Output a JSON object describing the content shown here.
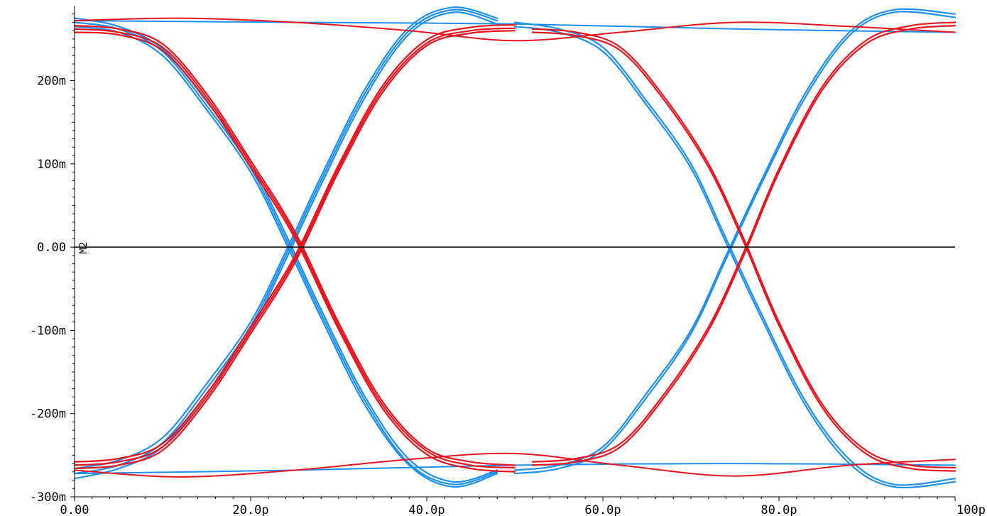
{
  "chart_data": {
    "type": "line",
    "title": "",
    "xlabel": "",
    "ylabel": "",
    "x_range": [
      0,
      100
    ],
    "y_range": [
      -300,
      290
    ],
    "x_ticks": [
      0,
      20,
      40,
      60,
      80,
      100
    ],
    "x_tick_labels": [
      "0.00",
      "20.0p",
      "40.0p",
      "60.0p",
      "80.0p",
      "100p"
    ],
    "y_ticks": [
      200,
      100,
      0,
      -100,
      -200,
      -300
    ],
    "y_tick_labels": [
      "200m",
      "100m",
      "0.00",
      "-100m",
      "-200m",
      "-300m"
    ],
    "grid": false,
    "legend": "none",
    "reference_line": {
      "y": 0,
      "color": "#000000",
      "label": "M2"
    },
    "colors": {
      "blue": "#1f8ff0",
      "red": "#e8141e"
    },
    "series": [
      {
        "color": "#1f8ff0",
        "kind": "falling",
        "x": [
          0,
          5,
          10,
          15,
          20,
          24,
          28,
          33,
          38,
          43,
          48
        ],
        "y": [
          270,
          262,
          235,
          170,
          95,
          10,
          -80,
          -185,
          -260,
          -285,
          -270
        ]
      },
      {
        "color": "#1f8ff0",
        "kind": "falling",
        "x": [
          0,
          5,
          10,
          15,
          20,
          24,
          28,
          33,
          38,
          43,
          48
        ],
        "y": [
          275,
          265,
          238,
          175,
          100,
          15,
          -75,
          -180,
          -255,
          -282,
          -268
        ]
      },
      {
        "color": "#1f8ff0",
        "kind": "falling",
        "x": [
          0,
          5,
          10,
          15,
          20,
          24,
          28,
          33,
          38,
          43,
          48
        ],
        "y": [
          265,
          258,
          230,
          165,
          90,
          5,
          -85,
          -190,
          -262,
          -288,
          -272
        ]
      },
      {
        "color": "#1f8ff0",
        "kind": "rising",
        "x": [
          0,
          5,
          10,
          15,
          20,
          24,
          28,
          33,
          38,
          43,
          48
        ],
        "y": [
          -272,
          -262,
          -235,
          -170,
          -95,
          -10,
          80,
          185,
          260,
          285,
          272
        ]
      },
      {
        "color": "#1f8ff0",
        "kind": "rising",
        "x": [
          0,
          5,
          10,
          15,
          20,
          24,
          28,
          33,
          38,
          43,
          48
        ],
        "y": [
          -278,
          -266,
          -240,
          -176,
          -100,
          -15,
          75,
          180,
          256,
          282,
          268
        ]
      },
      {
        "color": "#1f8ff0",
        "kind": "rising",
        "x": [
          0,
          5,
          10,
          15,
          20,
          24,
          28,
          33,
          38,
          43,
          48
        ],
        "y": [
          -266,
          -256,
          -229,
          -164,
          -90,
          -5,
          85,
          190,
          264,
          288,
          275
        ]
      },
      {
        "color": "#1f8ff0",
        "kind": "falling",
        "x": [
          50,
          55,
          60,
          65,
          70,
          74,
          78,
          83,
          88,
          93,
          100
        ],
        "y": [
          270,
          262,
          240,
          175,
          100,
          10,
          -80,
          -185,
          -255,
          -285,
          -278
        ]
      },
      {
        "color": "#1f8ff0",
        "kind": "falling",
        "x": [
          50,
          55,
          60,
          65,
          70,
          74,
          78,
          83,
          88,
          93,
          100
        ],
        "y": [
          265,
          258,
          235,
          170,
          95,
          5,
          -85,
          -190,
          -260,
          -288,
          -282
        ]
      },
      {
        "color": "#1f8ff0",
        "kind": "rising",
        "x": [
          50,
          55,
          60,
          65,
          70,
          74,
          78,
          83,
          88,
          93,
          100
        ],
        "y": [
          -268,
          -262,
          -240,
          -175,
          -100,
          -10,
          80,
          185,
          258,
          285,
          280
        ]
      },
      {
        "color": "#1f8ff0",
        "kind": "rising",
        "x": [
          50,
          55,
          60,
          65,
          70,
          74,
          78,
          83,
          88,
          93,
          100
        ],
        "y": [
          -272,
          -266,
          -244,
          -180,
          -104,
          -14,
          76,
          180,
          254,
          282,
          276
        ]
      },
      {
        "color": "#1f8ff0",
        "kind": "flat-high",
        "x": [
          0,
          25,
          50,
          75,
          100
        ],
        "y": [
          272,
          270,
          268,
          262,
          258
        ]
      },
      {
        "color": "#1f8ff0",
        "kind": "flat-low",
        "x": [
          0,
          25,
          50,
          75,
          100
        ],
        "y": [
          -272,
          -268,
          -262,
          -260,
          -262
        ]
      },
      {
        "color": "#e8141e",
        "kind": "falling",
        "x": [
          0,
          5,
          10,
          15,
          20,
          25,
          30,
          35,
          40,
          45,
          50
        ],
        "y": [
          262,
          258,
          240,
          180,
          100,
          15,
          -95,
          -190,
          -245,
          -262,
          -265
        ]
      },
      {
        "color": "#e8141e",
        "kind": "falling",
        "x": [
          0,
          5,
          10,
          15,
          20,
          25,
          30,
          35,
          40,
          45,
          50
        ],
        "y": [
          258,
          255,
          236,
          176,
          96,
          11,
          -99,
          -194,
          -249,
          -266,
          -270
        ]
      },
      {
        "color": "#e8141e",
        "kind": "falling",
        "x": [
          0,
          5,
          10,
          15,
          20,
          25,
          30,
          35,
          40,
          45,
          50
        ],
        "y": [
          266,
          262,
          244,
          184,
          104,
          19,
          -91,
          -186,
          -242,
          -258,
          -262
        ]
      },
      {
        "color": "#e8141e",
        "kind": "rising",
        "x": [
          0,
          5,
          10,
          15,
          20,
          25,
          30,
          35,
          40,
          45,
          50
        ],
        "y": [
          -262,
          -258,
          -240,
          -180,
          -100,
          -15,
          95,
          190,
          245,
          260,
          263
        ]
      },
      {
        "color": "#e8141e",
        "kind": "rising",
        "x": [
          0,
          5,
          10,
          15,
          20,
          25,
          30,
          35,
          40,
          45,
          50
        ],
        "y": [
          -258,
          -254,
          -236,
          -176,
          -96,
          -11,
          99,
          194,
          249,
          264,
          267
        ]
      },
      {
        "color": "#e8141e",
        "kind": "rising",
        "x": [
          0,
          5,
          10,
          15,
          20,
          25,
          30,
          35,
          40,
          45,
          50
        ],
        "y": [
          -266,
          -262,
          -244,
          -184,
          -104,
          -19,
          91,
          186,
          242,
          257,
          260
        ]
      },
      {
        "color": "#e8141e",
        "kind": "falling",
        "x": [
          52,
          57,
          62,
          67,
          72,
          76,
          80,
          85,
          90,
          95,
          100
        ],
        "y": [
          262,
          258,
          240,
          180,
          100,
          10,
          -90,
          -190,
          -245,
          -262,
          -265
        ]
      },
      {
        "color": "#e8141e",
        "kind": "falling",
        "x": [
          52,
          57,
          62,
          67,
          72,
          76,
          80,
          85,
          90,
          95,
          100
        ],
        "y": [
          258,
          254,
          236,
          176,
          96,
          6,
          -94,
          -194,
          -249,
          -266,
          -269
        ]
      },
      {
        "color": "#e8141e",
        "kind": "rising",
        "x": [
          52,
          57,
          62,
          67,
          72,
          76,
          80,
          85,
          90,
          95,
          100
        ],
        "y": [
          -262,
          -258,
          -240,
          -180,
          -100,
          -10,
          90,
          190,
          245,
          262,
          266
        ]
      },
      {
        "color": "#e8141e",
        "kind": "rising",
        "x": [
          52,
          57,
          62,
          67,
          72,
          76,
          80,
          85,
          90,
          95,
          100
        ],
        "y": [
          -258,
          -254,
          -236,
          -176,
          -96,
          -6,
          94,
          194,
          249,
          266,
          270
        ]
      },
      {
        "color": "#e8141e",
        "kind": "flat-high",
        "x": [
          0,
          12,
          25,
          38,
          50,
          62,
          75,
          88,
          100
        ],
        "y": [
          272,
          275,
          270,
          260,
          248,
          258,
          270,
          265,
          258
        ]
      },
      {
        "color": "#e8141e",
        "kind": "flat-low",
        "x": [
          0,
          12,
          25,
          38,
          50,
          62,
          75,
          88,
          100
        ],
        "y": [
          -268,
          -276,
          -268,
          -255,
          -248,
          -262,
          -275,
          -262,
          -255
        ]
      }
    ]
  }
}
